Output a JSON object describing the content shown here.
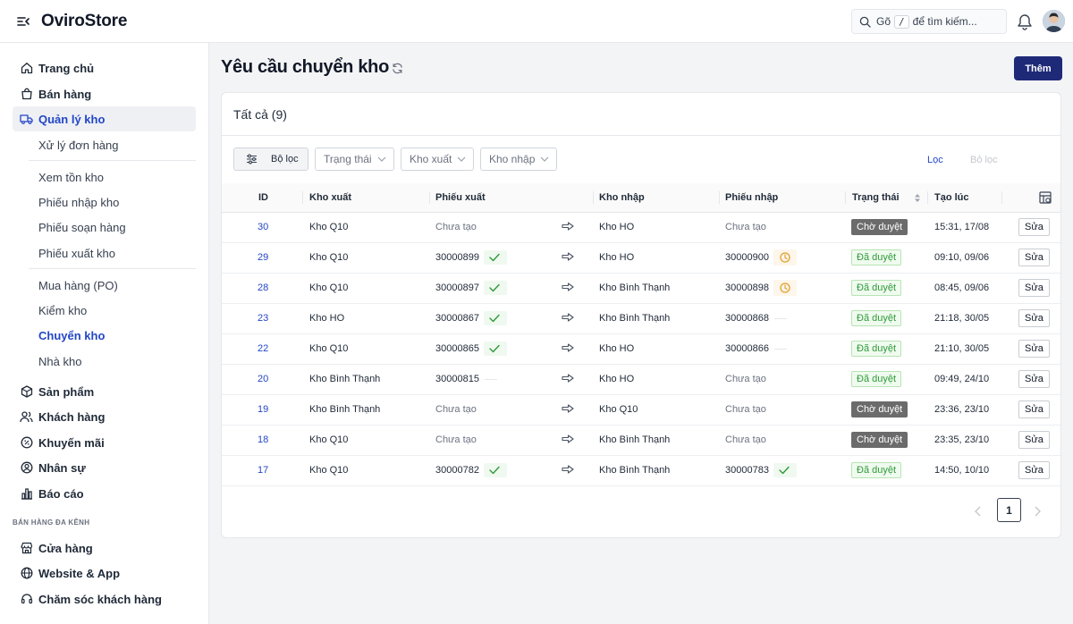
{
  "header": {
    "brand": "OviroStore",
    "search": {
      "prefix": "Gõ",
      "key": "/",
      "suffix": "để tìm kiếm..."
    }
  },
  "sidebar": {
    "items": [
      {
        "label": "Trang chủ",
        "icon": "home-icon"
      },
      {
        "label": "Bán hàng",
        "icon": "shopping-bag-icon"
      },
      {
        "label": "Quản lý kho",
        "icon": "truck-icon",
        "active": true
      }
    ],
    "warehouse_sub": [
      {
        "label": "Xử lý đơn hàng"
      },
      {
        "label": "Xem tồn kho"
      },
      {
        "label": "Phiếu nhập kho"
      },
      {
        "label": "Phiếu soạn hàng"
      },
      {
        "label": "Phiếu xuất kho"
      },
      {
        "label": "Mua hàng (PO)"
      },
      {
        "label": "Kiểm kho"
      },
      {
        "label": "Chuyển kho",
        "active": true
      },
      {
        "label": "Nhà kho"
      }
    ],
    "items2": [
      {
        "label": "Sản phẩm",
        "icon": "box-icon"
      },
      {
        "label": "Khách hàng",
        "icon": "users-icon"
      },
      {
        "label": "Khuyến mãi",
        "icon": "discount-icon"
      },
      {
        "label": "Nhân sự",
        "icon": "user-circle-icon"
      },
      {
        "label": "Báo cáo",
        "icon": "bar-chart-icon"
      }
    ],
    "section_label": "BÁN HÀNG ĐA KÊNH",
    "channel_items": [
      {
        "label": "Cửa hàng",
        "icon": "store-icon"
      },
      {
        "label": "Website & App",
        "icon": "globe-icon"
      },
      {
        "label": "Chăm sóc khách hàng",
        "icon": "headset-icon"
      }
    ]
  },
  "page": {
    "title": "Yêu cầu chuyển kho",
    "add_label": "Thêm",
    "tab_all": "Tất cả (9)"
  },
  "filters": {
    "filter_button": "Bộ lọc",
    "status_placeholder": "Trạng thái",
    "source_placeholder": "Kho xuất",
    "dest_placeholder": "Kho nhập",
    "apply": "Lọc",
    "clear": "Bỏ lọc"
  },
  "table": {
    "columns": {
      "id": "ID",
      "source": "Kho xuất",
      "export_slip": "Phiếu xuất",
      "dest": "Kho nhập",
      "import_slip": "Phiếu nhập",
      "status": "Trạng thái",
      "created": "Tạo lúc"
    },
    "edit_label": "Sửa",
    "rows": [
      {
        "id": "30",
        "source": "Kho Q10",
        "export": "Chưa tạo",
        "export_state": "none",
        "dest": "Kho HO",
        "import": "Chưa tạo",
        "import_state": "none",
        "status": "Chờ duyệt",
        "status_type": "pending",
        "created": "15:31, 17/08"
      },
      {
        "id": "29",
        "source": "Kho Q10",
        "export": "30000899",
        "export_state": "done",
        "dest": "Kho HO",
        "import": "30000900",
        "import_state": "waiting",
        "status": "Đã duyệt",
        "status_type": "approved",
        "created": "09:10, 09/06"
      },
      {
        "id": "28",
        "source": "Kho Q10",
        "export": "30000897",
        "export_state": "done",
        "dest": "Kho Bình Thạnh",
        "import": "30000898",
        "import_state": "waiting",
        "status": "Đã duyệt",
        "status_type": "approved",
        "created": "08:45, 09/06"
      },
      {
        "id": "23",
        "source": "Kho HO",
        "export": "30000867",
        "export_state": "done",
        "dest": "Kho Bình Thạnh",
        "import": "30000868",
        "import_state": "dash",
        "status": "Đã duyệt",
        "status_type": "approved",
        "created": "21:18, 30/05"
      },
      {
        "id": "22",
        "source": "Kho Q10",
        "export": "30000865",
        "export_state": "done",
        "dest": "Kho HO",
        "import": "30000866",
        "import_state": "dash",
        "status": "Đã duyệt",
        "status_type": "approved",
        "created": "21:10, 30/05"
      },
      {
        "id": "20",
        "source": "Kho Bình Thạnh",
        "export": "30000815",
        "export_state": "dash",
        "dest": "Kho HO",
        "import": "Chưa tạo",
        "import_state": "none",
        "status": "Đã duyệt",
        "status_type": "approved",
        "created": "09:49, 24/10"
      },
      {
        "id": "19",
        "source": "Kho Bình Thạnh",
        "export": "Chưa tạo",
        "export_state": "none",
        "dest": "Kho Q10",
        "import": "Chưa tạo",
        "import_state": "none",
        "status": "Chờ duyệt",
        "status_type": "pending",
        "created": "23:36, 23/10"
      },
      {
        "id": "18",
        "source": "Kho Q10",
        "export": "Chưa tạo",
        "export_state": "none",
        "dest": "Kho Bình Thạnh",
        "import": "Chưa tạo",
        "import_state": "none",
        "status": "Chờ duyệt",
        "status_type": "pending",
        "created": "23:35, 23/10"
      },
      {
        "id": "17",
        "source": "Kho Q10",
        "export": "30000782",
        "export_state": "done",
        "dest": "Kho Bình Thạnh",
        "import": "30000783",
        "import_state": "done",
        "status": "Đã duyệt",
        "status_type": "approved",
        "created": "14:50, 10/10"
      }
    ]
  },
  "pagination": {
    "current": "1"
  },
  "colors": {
    "accent": "#2346c7",
    "primary_button": "#1e2a78",
    "approved": "#2f9a3a",
    "pending": "#6b6b6b",
    "waiting": "#e0a030"
  }
}
